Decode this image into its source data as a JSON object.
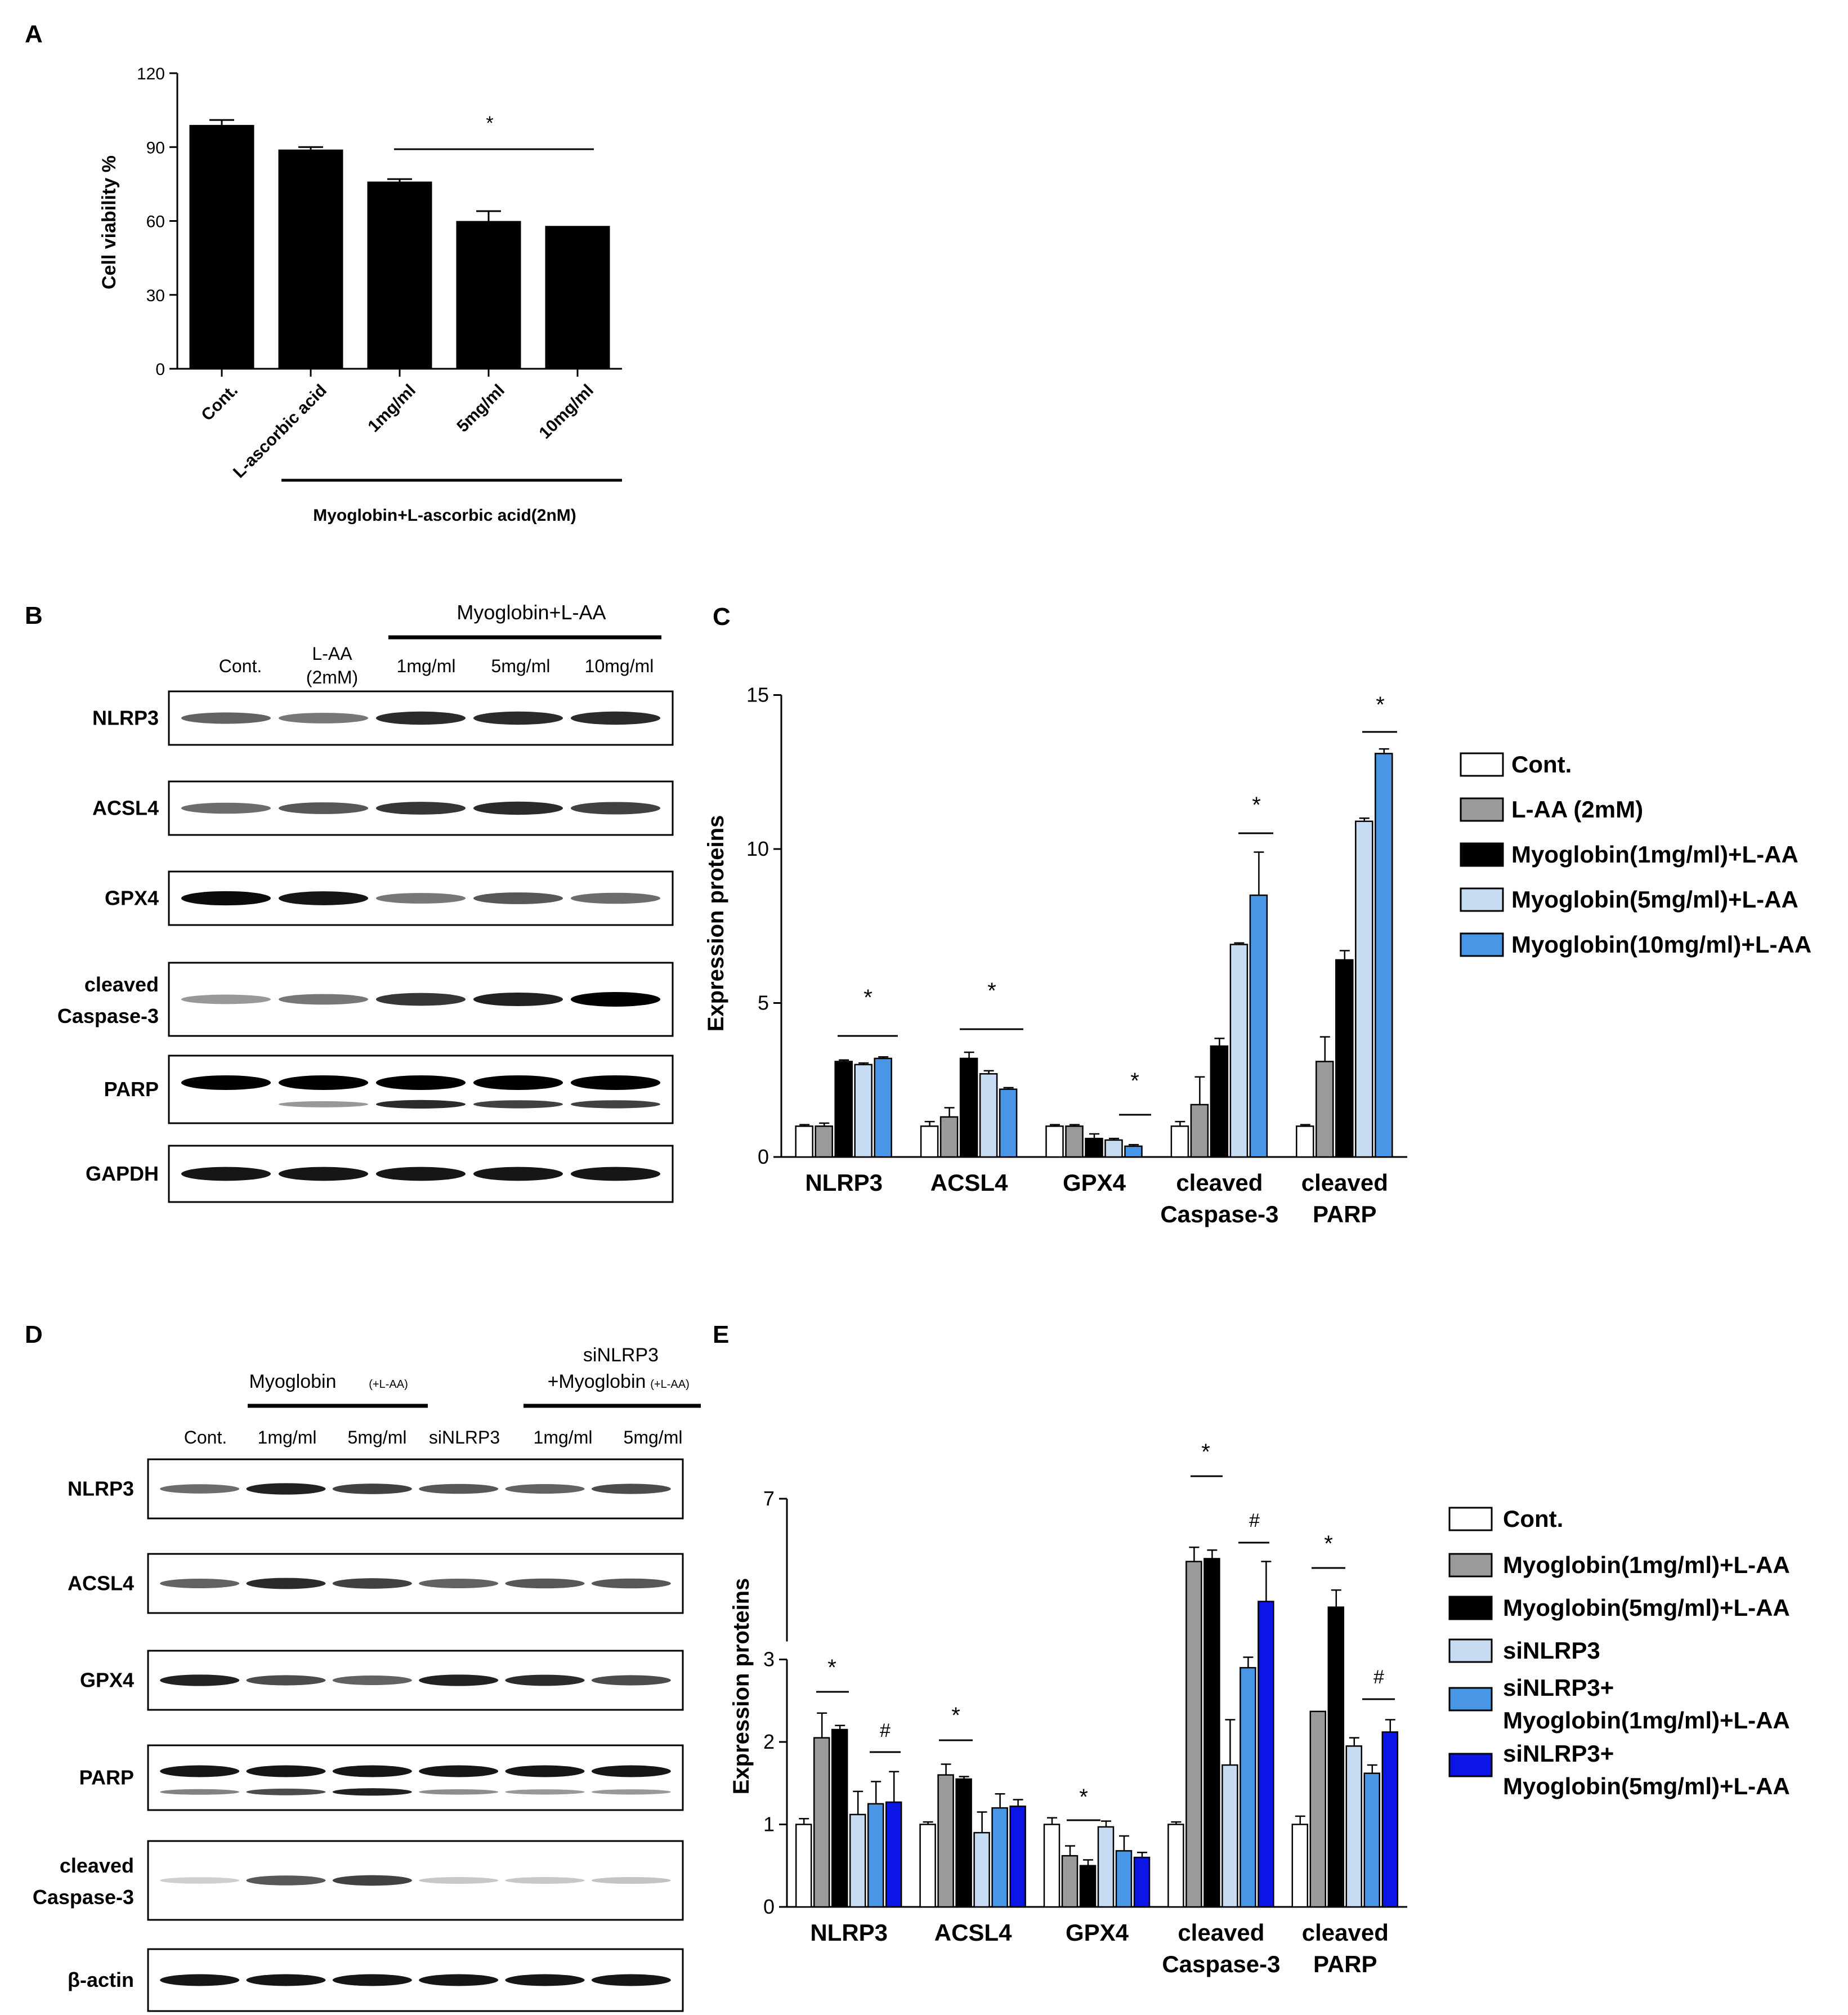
{
  "panel_labels": {
    "a": "A",
    "b": "B",
    "c": "C",
    "d": "D",
    "e": "E"
  },
  "colors": {
    "white": "#ffffff",
    "gray": "#9a9a9a",
    "black": "#000000",
    "light_blue": "#c7dcf2",
    "mid_blue": "#4a96e6",
    "blue": "#0b16e6"
  },
  "panel_a": {
    "ylabel": "Cell viability %",
    "group_label": "Myoglobin+L-ascorbic acid(2nM)",
    "significance": "*"
  },
  "panel_b": {
    "header": "Myoglobin+L-AA",
    "lanes": [
      "Cont.",
      "L-AA",
      "(2mM)",
      "1mg/ml",
      "5mg/ml",
      "10mg/ml"
    ],
    "rows": [
      "NLRP3",
      "ACSL4",
      "GPX4",
      "cleaved",
      "Caspase-3",
      "PARP",
      "GAPDH"
    ],
    "row_labels": [
      {
        "lines": [
          "NLRP3"
        ],
        "bands": [
          [
            0.55,
            0.45,
            0.8,
            0.8,
            0.8
          ]
        ]
      },
      {
        "lines": [
          "ACSL4"
        ],
        "bands": [
          [
            0.5,
            0.6,
            0.75,
            0.8,
            0.7
          ]
        ]
      },
      {
        "lines": [
          "GPX4"
        ],
        "bands": [
          [
            0.95,
            0.9,
            0.45,
            0.6,
            0.5
          ]
        ]
      },
      {
        "lines": [
          "cleaved",
          "Caspase-3"
        ],
        "bands": [
          [
            0.3,
            0.45,
            0.75,
            0.85,
            1.0
          ]
        ]
      },
      {
        "lines": [
          "PARP"
        ],
        "bands": [
          [
            1.0,
            1.0,
            1.0,
            1.0,
            1.0
          ],
          [
            0.0,
            0.3,
            0.8,
            0.7,
            0.7
          ]
        ]
      },
      {
        "lines": [
          "GAPDH"
        ],
        "bands": [
          [
            0.9,
            0.9,
            0.9,
            0.9,
            0.9
          ]
        ]
      }
    ]
  },
  "panel_c": {
    "ylabel": "Expression proteins",
    "legend": [
      "Cont.",
      "L-AA (2mM)",
      "Myoglobin(1mg/ml)+L-AA",
      "Myoglobin(5mg/ml)+L-AA",
      "Myoglobin(10mg/ml)+L-AA"
    ],
    "categories": [
      [
        "NLRP3"
      ],
      [
        "ACSL4"
      ],
      [
        "GPX4"
      ],
      [
        "cleaved",
        "Caspase-3"
      ],
      [
        "cleaved",
        "PARP"
      ]
    ]
  },
  "panel_d": {
    "header_left": "Myoglobin",
    "header_left_sub": "(+L-AA)",
    "header_right": [
      "siNLRP3",
      "+Myoglobin"
    ],
    "header_right_sub": "(+L-AA)",
    "lanes": [
      "Cont.",
      "1mg/ml",
      "5mg/ml",
      "siNLRP3",
      "1mg/ml",
      "5mg/ml"
    ],
    "row_labels": [
      {
        "lines": [
          "NLRP3"
        ],
        "bands": [
          [
            0.5,
            0.85,
            0.7,
            0.6,
            0.55,
            0.65
          ]
        ]
      },
      {
        "lines": [
          "ACSL4"
        ],
        "bands": [
          [
            0.55,
            0.8,
            0.7,
            0.55,
            0.6,
            0.6
          ]
        ]
      },
      {
        "lines": [
          "GPX4"
        ],
        "bands": [
          [
            0.85,
            0.65,
            0.55,
            0.85,
            0.8,
            0.65
          ]
        ]
      },
      {
        "lines": [
          "PARP"
        ],
        "bands": [
          [
            0.9,
            0.9,
            0.9,
            0.9,
            0.9,
            0.9
          ],
          [
            0.4,
            0.65,
            0.85,
            0.35,
            0.3,
            0.3
          ]
        ]
      },
      {
        "lines": [
          "cleaved",
          "Caspase-3"
        ],
        "bands": [
          [
            0.05,
            0.6,
            0.7,
            0.08,
            0.08,
            0.1
          ]
        ]
      },
      {
        "lines": [
          "β-actin"
        ],
        "bands": [
          [
            0.9,
            0.9,
            0.9,
            0.9,
            0.9,
            0.9
          ]
        ]
      }
    ]
  },
  "panel_e": {
    "ylabel": "Expression proteins",
    "legend": [
      [
        "Cont."
      ],
      [
        "Myoglobin(1mg/ml)+L-AA"
      ],
      [
        "Myoglobin(5mg/ml)+L-AA"
      ],
      [
        "siNLRP3"
      ],
      [
        "siNLRP3+",
        "Myoglobin(1mg/ml)+L-AA"
      ],
      [
        "siNLRP3+",
        "Myoglobin(5mg/ml)+L-AA"
      ]
    ],
    "categories": [
      [
        "NLRP3"
      ],
      [
        "ACSL4"
      ],
      [
        "GPX4"
      ],
      [
        "cleaved",
        "Caspase-3"
      ],
      [
        "cleaved",
        "PARP"
      ]
    ],
    "sig_star": "*",
    "sig_hash": "#"
  },
  "chart_data": [
    {
      "panel": "A",
      "type": "bar",
      "categories": [
        "Cont.",
        "L-ascorbic acid",
        "1mg/ml",
        "5mg/ml",
        "10mg/ml"
      ],
      "values": [
        99,
        89,
        76,
        60,
        58
      ],
      "errors": [
        2,
        1,
        1,
        4,
        0
      ],
      "ylabel": "Cell viability %",
      "ylim": [
        0,
        120
      ],
      "yticks": [
        0,
        30,
        60,
        90,
        120
      ],
      "color": "#000000"
    },
    {
      "panel": "C",
      "type": "bar",
      "categories": [
        "NLRP3",
        "ACSL4",
        "GPX4",
        "cleaved Caspase-3",
        "cleaved PARP"
      ],
      "series": [
        {
          "name": "Cont.",
          "color": "#ffffff",
          "values": [
            1,
            1,
            1,
            1,
            1
          ],
          "errors": [
            0.05,
            0.15,
            0.05,
            0.15,
            0.05
          ]
        },
        {
          "name": "L-AA (2mM)",
          "color": "#9a9a9a",
          "values": [
            1,
            1.3,
            1,
            1.7,
            3.1
          ],
          "errors": [
            0.1,
            0.3,
            0.05,
            0.9,
            0.8
          ]
        },
        {
          "name": "Myoglobin(1mg/ml)+L-AA",
          "color": "#000000",
          "values": [
            3.1,
            3.2,
            0.6,
            3.6,
            6.4
          ],
          "errors": [
            0.05,
            0.2,
            0.15,
            0.25,
            0.3
          ]
        },
        {
          "name": "Myoglobin(5mg/ml)+L-AA",
          "color": "#c7dcf2",
          "values": [
            3,
            2.7,
            0.55,
            6.9,
            10.9
          ],
          "errors": [
            0.05,
            0.1,
            0.05,
            0.05,
            0.1
          ]
        },
        {
          "name": "Myoglobin(10mg/ml)+L-AA",
          "color": "#4a96e6",
          "values": [
            3.2,
            2.2,
            0.35,
            8.5,
            13.1
          ],
          "errors": [
            0.05,
            0.05,
            0.05,
            1.4,
            0.15
          ]
        }
      ],
      "ylabel": "Expression proteins",
      "ylim": [
        0,
        15
      ],
      "yticks": [
        0,
        5,
        10,
        15
      ],
      "significance": [
        "*",
        "*",
        "*",
        "*",
        "*"
      ]
    },
    {
      "panel": "E",
      "type": "bar",
      "categories": [
        "NLRP3",
        "ACSL4",
        "GPX4",
        "cleaved Caspase-3",
        "cleaved PARP"
      ],
      "series": [
        {
          "name": "Cont.",
          "color": "#ffffff",
          "values": [
            1,
            1,
            1,
            1,
            1
          ],
          "errors": [
            0.07,
            0.03,
            0.08,
            0.03,
            0.1
          ]
        },
        {
          "name": "Myoglobin(1mg/ml)+L-AA",
          "color": "#9a9a9a",
          "values": [
            2.05,
            1.6,
            0.62,
            5.9,
            2.37
          ],
          "errors": [
            0.3,
            0.13,
            0.12,
            0.25,
            0
          ]
        },
        {
          "name": "Myoglobin(5mg/ml)+L-AA",
          "color": "#000000",
          "values": [
            2.15,
            1.55,
            0.5,
            5.95,
            5.1
          ],
          "errors": [
            0.05,
            0.03,
            0.07,
            0.15,
            0.3
          ]
        },
        {
          "name": "siNLRP3",
          "color": "#c7dcf2",
          "values": [
            1.12,
            0.9,
            0.97,
            1.72,
            1.95
          ],
          "errors": [
            0.28,
            0.25,
            0.07,
            0.55,
            0.1
          ]
        },
        {
          "name": "siNLRP3+ Myoglobin(1mg/ml)+L-AA",
          "color": "#4a96e6",
          "values": [
            1.25,
            1.2,
            0.68,
            2.9,
            1.62
          ],
          "errors": [
            0.27,
            0.17,
            0.18,
            0.25,
            0.1
          ]
        },
        {
          "name": "siNLRP3+ Myoglobin(5mg/ml)+L-AA",
          "color": "#0b16e6",
          "values": [
            1.27,
            1.22,
            0.6,
            5.2,
            2.12
          ],
          "errors": [
            0.37,
            0.08,
            0.06,
            0.7,
            0.15
          ]
        }
      ],
      "ylabel": "Expression proteins",
      "ylim": [
        0,
        7
      ],
      "yticks": [
        0,
        1,
        2,
        3,
        7
      ],
      "axis_break": [
        3,
        4.5
      ],
      "significance": [
        "*",
        "*",
        "*",
        "*",
        "*"
      ],
      "significance_hash": [
        "#",
        "#",
        "#"
      ]
    }
  ]
}
